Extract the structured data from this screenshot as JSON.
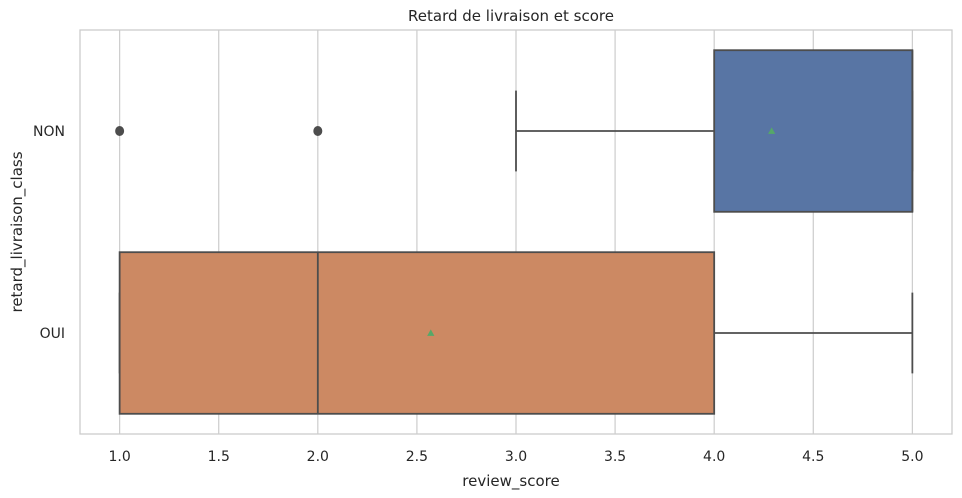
{
  "chart_data": {
    "type": "boxplot",
    "orientation": "horizontal",
    "title": "Retard de livraison et score",
    "xlabel": "review_score",
    "ylabel": "retard_livraison_class",
    "xlim": [
      0.8,
      5.2
    ],
    "xticks": [
      1.0,
      1.5,
      2.0,
      2.5,
      3.0,
      3.5,
      4.0,
      4.5,
      5.0
    ],
    "xtick_labels": [
      "1.0",
      "1.5",
      "2.0",
      "2.5",
      "3.0",
      "3.5",
      "4.0",
      "4.5",
      "5.0"
    ],
    "grid": "vertical",
    "categories": [
      "NON",
      "OUI"
    ],
    "boxes": [
      {
        "category": "NON",
        "whisker_low": 3.0,
        "q1": 4.0,
        "median": 5.0,
        "q3": 5.0,
        "whisker_high": 5.0,
        "mean": 4.29,
        "outliers": [
          1.0,
          2.0
        ],
        "color": "#5875a4"
      },
      {
        "category": "OUI",
        "whisker_low": 1.0,
        "q1": 1.0,
        "median": 2.0,
        "q3": 4.0,
        "whisker_high": 5.0,
        "mean": 2.57,
        "outliers": [],
        "color": "#cc8963"
      }
    ],
    "mean_marker_color": "#55a868",
    "edge_color": "#4d4d4d",
    "frame_color": "#cccccc",
    "grid_color": "#cccccc"
  }
}
